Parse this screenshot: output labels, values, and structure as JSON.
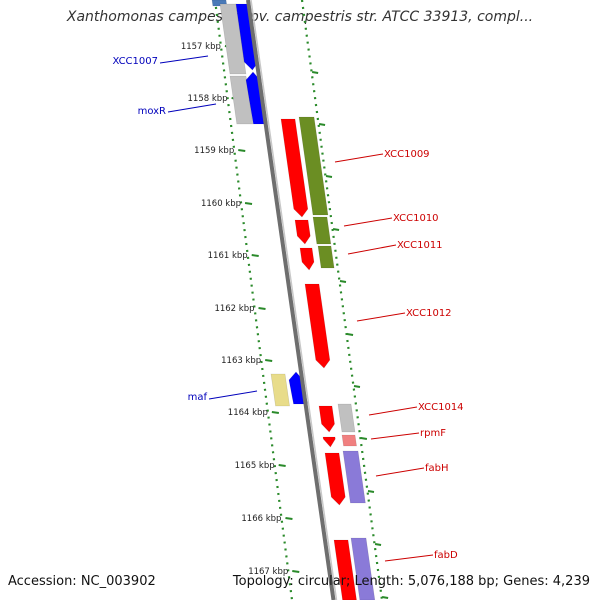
{
  "title": "Xanthomonas campestris pv. campestris str. ATCC 33913, compl...",
  "footer": {
    "accession": "Accession: NC_003902",
    "topology": "Topology: circular; Length: 5,076,188 bp; Genes: 4,239"
  },
  "colors": {
    "backbone": "#8a8a8a",
    "tick": "#2a8a2a",
    "red_label": "#cc0000",
    "blue_label": "#0000bb",
    "gene_red": "#ff0000",
    "gene_blue": "#0000ff",
    "gene_green": "#6b8e23",
    "gene_gray": "#c0c0c0",
    "gene_yellow": "#e8dc8a",
    "gene_purple": "#8a7ad8",
    "gene_pink": "#f08080",
    "gene_steel": "#4a7ab8"
  },
  "ticks": [
    "1157 kbp",
    "1158 kbp",
    "1159 kbp",
    "1160 kbp",
    "1161 kbp",
    "1162 kbp",
    "1163 kbp",
    "1164 kbp",
    "1165 kbp",
    "1166 kbp",
    "1167 kbp"
  ],
  "genes": [
    {
      "label": "XCC1007",
      "label_color": "blue"
    },
    {
      "label": "moxR",
      "label_color": "blue"
    },
    {
      "label": "XCC1009",
      "label_color": "red"
    },
    {
      "label": "XCC1010",
      "label_color": "red"
    },
    {
      "label": "XCC1011",
      "label_color": "red"
    },
    {
      "label": "XCC1012",
      "label_color": "red"
    },
    {
      "label": "maf",
      "label_color": "blue"
    },
    {
      "label": "XCC1014",
      "label_color": "red"
    },
    {
      "label": "rpmF",
      "label_color": "red"
    },
    {
      "label": "fabH",
      "label_color": "red"
    },
    {
      "label": "fabD",
      "label_color": "red"
    }
  ]
}
